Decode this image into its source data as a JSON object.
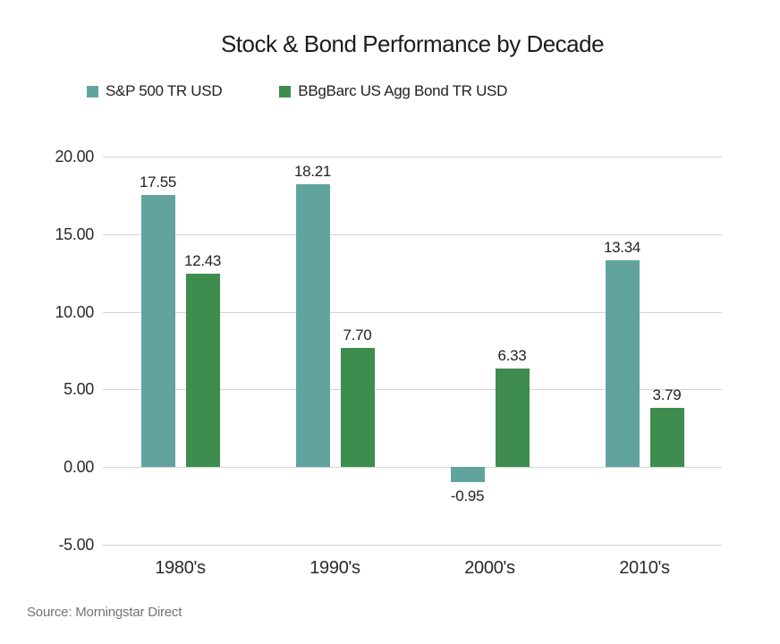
{
  "title": "Stock & Bond Performance by Decade",
  "source_note": "Source: Morningstar Direct",
  "colors": {
    "stock_teal": "#61A49E",
    "bond_green": "#3F8C4F",
    "gridline": "#D4D4D4",
    "text": "#222222",
    "source_text": "#747474"
  },
  "legend": [
    {
      "label": "S&P 500 TR USD",
      "color": "#61A49E"
    },
    {
      "label": "BBgBarc US Agg Bond TR USD",
      "color": "#3F8C4F"
    }
  ],
  "chart_data": {
    "type": "bar",
    "title": "Stock & Bond Performance by Decade",
    "categories": [
      "1980's",
      "1990's",
      "2000's",
      "2010's"
    ],
    "series": [
      {
        "name": "S&P 500 TR USD",
        "color": "#61A49E",
        "values": [
          17.55,
          18.21,
          -0.95,
          13.34
        ],
        "value_labels": [
          "17.55",
          "18.21",
          "-0.95",
          "13.34"
        ]
      },
      {
        "name": "BBgBarc US Agg Bond TR USD",
        "color": "#3F8C4F",
        "values": [
          12.43,
          7.7,
          6.33,
          3.79
        ],
        "value_labels": [
          "12.43",
          "7.70",
          "6.33",
          "3.79"
        ]
      }
    ],
    "xlabel": "",
    "ylabel": "",
    "ylim": [
      -5,
      20
    ],
    "y_ticks": [
      20,
      15,
      10,
      5,
      0,
      -5
    ],
    "y_tick_labels": [
      "20.00",
      "15.00",
      "10.00",
      "5.00",
      "0.00",
      "-5.00"
    ],
    "grid": true,
    "legend_position": "top-left"
  }
}
